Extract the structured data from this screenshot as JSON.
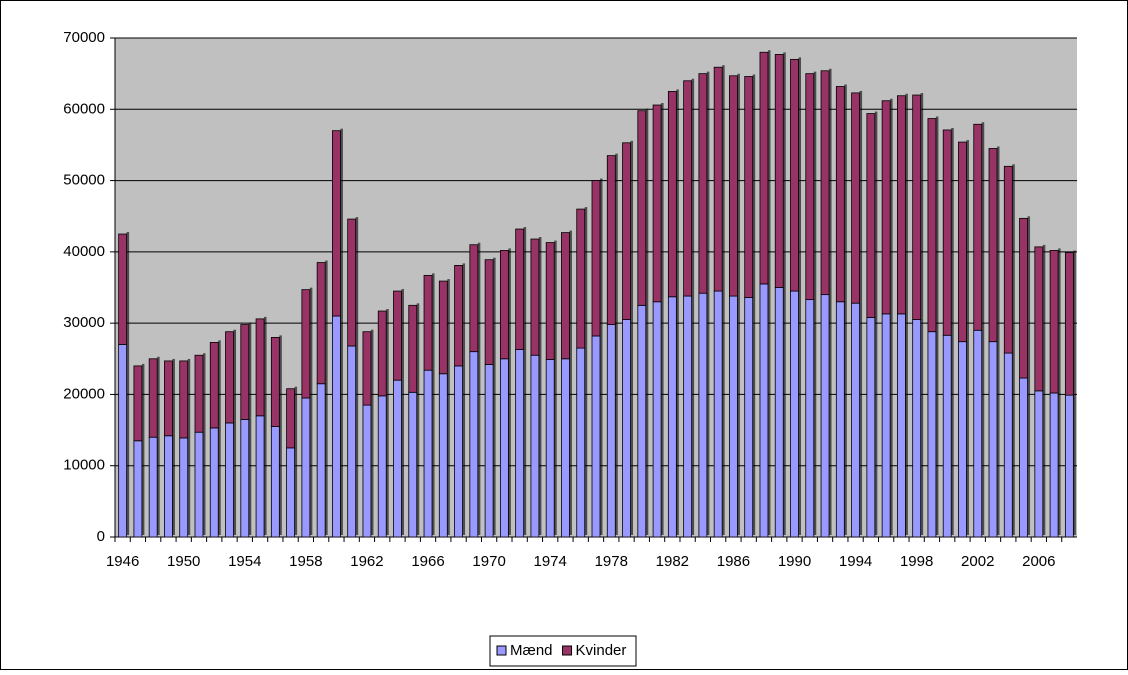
{
  "chart_data": {
    "type": "stacked_bar",
    "categories": [
      "1946",
      null,
      null,
      null,
      "1950",
      null,
      null,
      null,
      "1954",
      null,
      null,
      null,
      "1958",
      null,
      null,
      null,
      "1962",
      null,
      null,
      null,
      "1966",
      null,
      null,
      null,
      "1970",
      null,
      null,
      null,
      "1974",
      null,
      null,
      null,
      "1978",
      null,
      null,
      null,
      "1982",
      null,
      null,
      null,
      "1986",
      null,
      null,
      null,
      "1990",
      null,
      null,
      null,
      "1994",
      null,
      null,
      null,
      "1998",
      null,
      null,
      null,
      "2002",
      null,
      null,
      null,
      "2006",
      null,
      null
    ],
    "series": [
      {
        "name": "Mænd",
        "color": "#9999ff",
        "values": [
          27000,
          13500,
          14000,
          14200,
          13900,
          14700,
          15300,
          16000,
          16500,
          17000,
          15500,
          12500,
          19500,
          21500,
          31000,
          26800,
          18500,
          19800,
          22000,
          20300,
          23400,
          22900,
          24000,
          26000,
          24200,
          25000,
          26300,
          25500,
          24900,
          25000,
          26500,
          28200,
          29800,
          30500,
          32500,
          33000,
          33700,
          33800,
          34200,
          34500,
          33800,
          33600,
          35500,
          35000,
          34500,
          33300,
          34000,
          33000,
          32800,
          30800,
          31300,
          31300,
          30500,
          28800,
          28300,
          27400,
          29000,
          27400,
          25800,
          22300,
          20500,
          20200,
          19900
        ]
      },
      {
        "name": "Kvinder",
        "color": "#993366",
        "values": [
          15500,
          10500,
          11000,
          10500,
          10800,
          10800,
          12000,
          12800,
          13300,
          13600,
          12500,
          8300,
          15200,
          17000,
          26000,
          17800,
          10300,
          11900,
          12500,
          12200,
          13300,
          13000,
          14100,
          15000,
          14700,
          15200,
          16900,
          16300,
          16400,
          17700,
          19500,
          21800,
          23700,
          24800,
          27300,
          27600,
          28800,
          30200,
          30800,
          31400,
          30900,
          31000,
          32500,
          32700,
          32500,
          31700,
          31400,
          30200,
          29500,
          28600,
          29900,
          30600,
          31500,
          29900,
          28800,
          28000,
          28900,
          27100,
          26200,
          22400,
          20200,
          20000,
          20000
        ]
      }
    ],
    "ylim": [
      0,
      70000
    ],
    "yticks": [
      0,
      10000,
      20000,
      30000,
      40000,
      50000,
      60000,
      70000
    ],
    "grid": true,
    "legend": "bottom"
  }
}
